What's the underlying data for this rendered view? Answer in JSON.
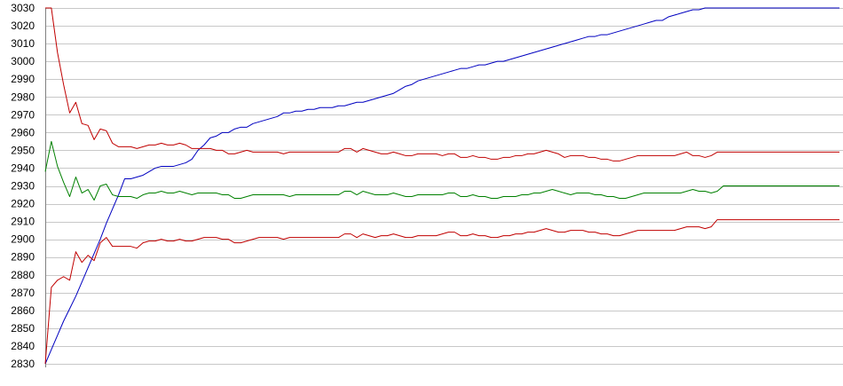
{
  "chart_data": {
    "type": "line",
    "title": "",
    "xlabel": "",
    "ylabel": "",
    "ylim": [
      2830,
      3030
    ],
    "yticks": [
      2830,
      2840,
      2850,
      2860,
      2870,
      2880,
      2890,
      2900,
      2910,
      2920,
      2930,
      2940,
      2950,
      2960,
      2970,
      2980,
      2990,
      3000,
      3010,
      3020,
      3030
    ],
    "grid": true,
    "legend": "none",
    "x": [
      0,
      1,
      2,
      3,
      4,
      5,
      6,
      7,
      8,
      9,
      10,
      11,
      12,
      13,
      14,
      15,
      16,
      17,
      18,
      19,
      20,
      21,
      22,
      23,
      24,
      25,
      26,
      27,
      28,
      29,
      30,
      31,
      32,
      33,
      34,
      35,
      36,
      37,
      38,
      39,
      40,
      41,
      42,
      43,
      44,
      45,
      46,
      47,
      48,
      49,
      50,
      51,
      52,
      53,
      54,
      55,
      56,
      57,
      58,
      59,
      60,
      61,
      62,
      63,
      64,
      65,
      66,
      67,
      68,
      69,
      70,
      71,
      72,
      73,
      74,
      75,
      76,
      77,
      78,
      79,
      80,
      81,
      82,
      83,
      84,
      85,
      86,
      87,
      88,
      89,
      90,
      91,
      92,
      93,
      94,
      95,
      96,
      97,
      98,
      99,
      100,
      101,
      102,
      103,
      104,
      105,
      106,
      107,
      108,
      109,
      110,
      111,
      112,
      113,
      114,
      115,
      116,
      117,
      118,
      119,
      120,
      121,
      122,
      123,
      124,
      125,
      126,
      127,
      128,
      129,
      130
    ],
    "series": [
      {
        "color": "#0000c0",
        "values": [
          2830,
          2838,
          2846,
          2854,
          2861,
          2868,
          2876,
          2884,
          2892,
          2900,
          2909,
          2917,
          2925,
          2934,
          2934,
          2935,
          2936,
          2938,
          2940,
          2941,
          2941,
          2941,
          2942,
          2943,
          2945,
          2950,
          2953,
          2957,
          2958,
          2960,
          2960,
          2962,
          2963,
          2963,
          2965,
          2966,
          2967,
          2968,
          2969,
          2971,
          2971,
          2972,
          2972,
          2973,
          2973,
          2974,
          2974,
          2974,
          2975,
          2975,
          2976,
          2977,
          2977,
          2978,
          2979,
          2980,
          2981,
          2982,
          2984,
          2986,
          2987,
          2989,
          2990,
          2991,
          2992,
          2993,
          2994,
          2995,
          2996,
          2996,
          2997,
          2998,
          2998,
          2999,
          3000,
          3000,
          3001,
          3002,
          3003,
          3004,
          3005,
          3006,
          3007,
          3008,
          3009,
          3010,
          3011,
          3012,
          3013,
          3014,
          3014,
          3015,
          3015,
          3016,
          3017,
          3018,
          3019,
          3020,
          3021,
          3022,
          3023,
          3023,
          3025,
          3026,
          3027,
          3028,
          3029,
          3029,
          3030,
          3030,
          3030,
          3030,
          3030,
          3030,
          3030,
          3030,
          3030,
          3030,
          3030,
          3030,
          3030,
          3030,
          3030,
          3030,
          3030,
          3030,
          3030,
          3030,
          3030,
          3030,
          3030
        ]
      },
      {
        "color": "#c00000",
        "values": [
          3030,
          3030,
          3005,
          2987,
          2971,
          2977,
          2965,
          2964,
          2956,
          2962,
          2961,
          2954,
          2952,
          2952,
          2952,
          2951,
          2952,
          2953,
          2953,
          2954,
          2953,
          2953,
          2954,
          2953,
          2951,
          2951,
          2951,
          2951,
          2950,
          2950,
          2948,
          2948,
          2949,
          2950,
          2949,
          2949,
          2949,
          2949,
          2949,
          2948,
          2949,
          2949,
          2949,
          2949,
          2949,
          2949,
          2949,
          2949,
          2949,
          2951,
          2951,
          2949,
          2951,
          2950,
          2949,
          2948,
          2948,
          2949,
          2948,
          2947,
          2947,
          2948,
          2948,
          2948,
          2948,
          2947,
          2948,
          2948,
          2946,
          2946,
          2947,
          2946,
          2946,
          2945,
          2945,
          2946,
          2946,
          2947,
          2947,
          2948,
          2948,
          2949,
          2950,
          2949,
          2948,
          2946,
          2947,
          2947,
          2947,
          2946,
          2946,
          2945,
          2945,
          2944,
          2944,
          2945,
          2946,
          2947,
          2947,
          2947,
          2947,
          2947,
          2947,
          2947,
          2948,
          2949,
          2947,
          2947,
          2946,
          2947,
          2949,
          2949,
          2949,
          2949,
          2949,
          2949,
          2949,
          2949,
          2949,
          2949,
          2949,
          2949,
          2949,
          2949,
          2949,
          2949,
          2949,
          2949,
          2949,
          2949,
          2949
        ]
      },
      {
        "color": "#008000",
        "values": [
          2938,
          2955,
          2941,
          2932,
          2924,
          2935,
          2926,
          2928,
          2922,
          2930,
          2931,
          2925,
          2924,
          2924,
          2924,
          2923,
          2925,
          2926,
          2926,
          2927,
          2926,
          2926,
          2927,
          2926,
          2925,
          2926,
          2926,
          2926,
          2926,
          2925,
          2925,
          2923,
          2923,
          2924,
          2925,
          2925,
          2925,
          2925,
          2925,
          2925,
          2924,
          2925,
          2925,
          2925,
          2925,
          2925,
          2925,
          2925,
          2925,
          2927,
          2927,
          2925,
          2927,
          2926,
          2925,
          2925,
          2925,
          2926,
          2925,
          2924,
          2924,
          2925,
          2925,
          2925,
          2925,
          2925,
          2926,
          2926,
          2924,
          2924,
          2925,
          2924,
          2924,
          2923,
          2923,
          2924,
          2924,
          2924,
          2925,
          2925,
          2926,
          2926,
          2927,
          2928,
          2927,
          2926,
          2925,
          2926,
          2926,
          2926,
          2925,
          2925,
          2924,
          2924,
          2923,
          2923,
          2924,
          2925,
          2926,
          2926,
          2926,
          2926,
          2926,
          2926,
          2926,
          2927,
          2928,
          2927,
          2927,
          2926,
          2927,
          2930,
          2930,
          2930,
          2930,
          2930,
          2930,
          2930,
          2930,
          2930,
          2930,
          2930,
          2930,
          2930,
          2930,
          2930,
          2930,
          2930,
          2930,
          2930,
          2930
        ]
      },
      {
        "color": "#c00000",
        "values": [
          2830,
          2873,
          2877,
          2879,
          2877,
          2893,
          2887,
          2891,
          2888,
          2898,
          2901,
          2896,
          2896,
          2896,
          2896,
          2895,
          2898,
          2899,
          2899,
          2900,
          2899,
          2899,
          2900,
          2899,
          2899,
          2900,
          2901,
          2901,
          2901,
          2900,
          2900,
          2898,
          2898,
          2899,
          2900,
          2901,
          2901,
          2901,
          2901,
          2900,
          2901,
          2901,
          2901,
          2901,
          2901,
          2901,
          2901,
          2901,
          2901,
          2903,
          2903,
          2901,
          2903,
          2902,
          2901,
          2902,
          2902,
          2903,
          2902,
          2901,
          2901,
          2902,
          2902,
          2902,
          2902,
          2903,
          2904,
          2904,
          2902,
          2902,
          2903,
          2902,
          2902,
          2901,
          2901,
          2902,
          2902,
          2903,
          2903,
          2904,
          2904,
          2905,
          2906,
          2905,
          2904,
          2904,
          2905,
          2905,
          2905,
          2904,
          2904,
          2903,
          2903,
          2902,
          2902,
          2903,
          2904,
          2905,
          2905,
          2905,
          2905,
          2905,
          2905,
          2905,
          2906,
          2907,
          2907,
          2907,
          2906,
          2907,
          2911,
          2911,
          2911,
          2911,
          2911,
          2911,
          2911,
          2911,
          2911,
          2911,
          2911,
          2911,
          2911,
          2911,
          2911,
          2911,
          2911,
          2911,
          2911,
          2911,
          2911
        ]
      }
    ]
  }
}
